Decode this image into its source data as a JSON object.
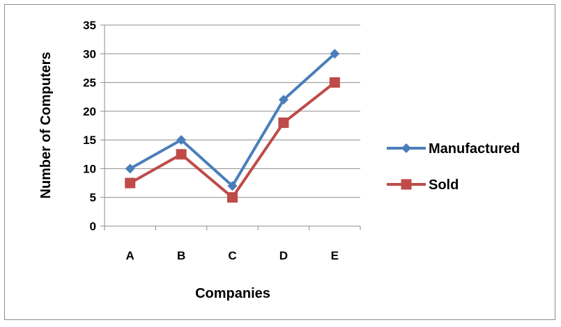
{
  "chart_data": {
    "type": "line",
    "title": "",
    "categories": [
      "A",
      "B",
      "C",
      "D",
      "E"
    ],
    "series": [
      {
        "name": "Manufactured",
        "values": [
          10,
          15,
          7,
          22,
          30
        ],
        "color": "#4a7ebb",
        "marker": "diamond"
      },
      {
        "name": "Sold",
        "values": [
          7.5,
          12.5,
          5,
          18,
          25
        ],
        "color": "#be4b48",
        "marker": "square"
      }
    ],
    "xlabel": "Companies",
    "ylabel": "Number of Computers",
    "ylim": [
      0,
      35
    ],
    "yticks": [
      0,
      5,
      10,
      15,
      20,
      25,
      30,
      35
    ],
    "grid": "horizontal",
    "legend_position": "right"
  }
}
